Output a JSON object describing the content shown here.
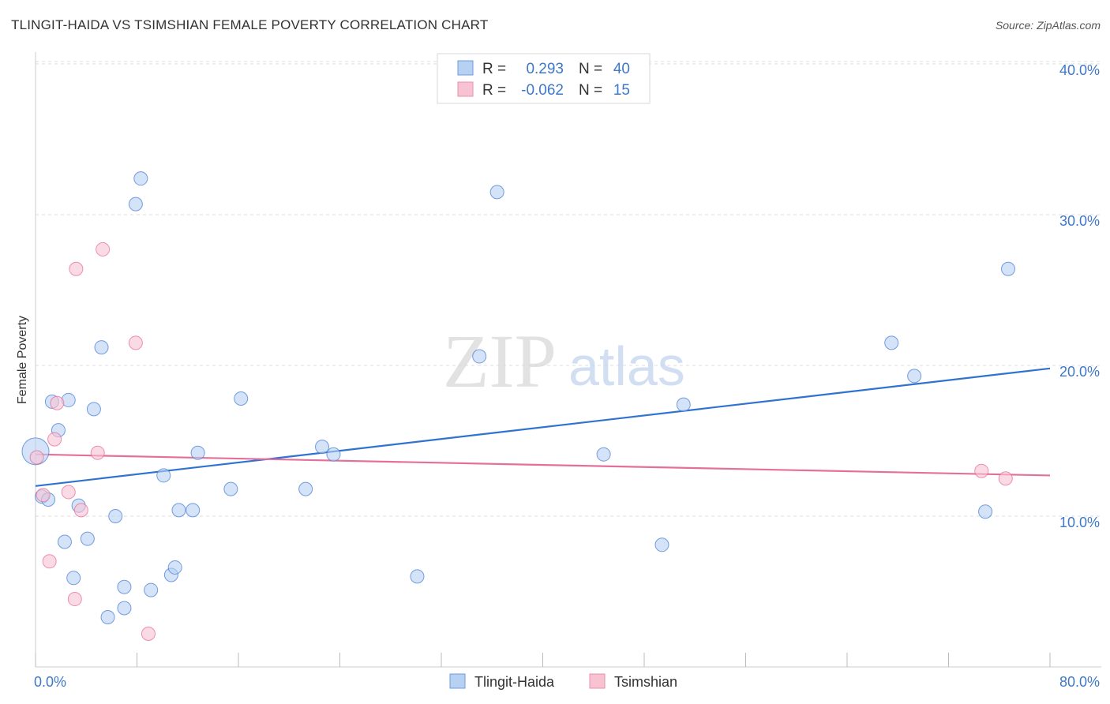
{
  "title": "TLINGIT-HAIDA VS TSIMSHIAN FEMALE POVERTY CORRELATION CHART",
  "source": "Source: ZipAtlas.com",
  "watermark": {
    "zip": "ZIP",
    "atlas": "atlas"
  },
  "colors": {
    "blue": "#4a7fd4",
    "blue_fill": "#b7d1f3",
    "blue_line": "#2f72d0",
    "pink": "#e56e97",
    "pink_fill": "#f7c3d3",
    "pink_line": "#e4709a",
    "axis_label": "#3d78c9",
    "grid": "#dddddd"
  },
  "legend_top": [
    {
      "r_label": "R =",
      "r_value": "0.293",
      "n_label": "N =",
      "n_value": "40"
    },
    {
      "r_label": "R =",
      "r_value": "-0.062",
      "n_label": "N =",
      "n_value": "15"
    }
  ],
  "chart_data": {
    "type": "scatter",
    "title": "TLINGIT-HAIDA VS TSIMSHIAN FEMALE POVERTY CORRELATION CHART",
    "xlabel": "",
    "ylabel": "Female Poverty",
    "xlim": [
      0,
      80
    ],
    "ylim": [
      0,
      42
    ],
    "x_tick_labels": [
      "0.0%",
      "80.0%"
    ],
    "y_ticks": [
      10,
      20,
      30,
      40
    ],
    "y_tick_labels": [
      "10.0%",
      "20.0%",
      "30.0%",
      "40.0%"
    ],
    "grid": true,
    "legend_position": "bottom-center",
    "series": [
      {
        "name": "Tlingit-Haida",
        "color": "blue",
        "trend": {
          "x": [
            0,
            80
          ],
          "y": [
            12.0,
            19.8
          ]
        },
        "points": [
          {
            "x": 0.0,
            "y": 14.3,
            "big": true
          },
          {
            "x": 0.5,
            "y": 11.3
          },
          {
            "x": 1.0,
            "y": 11.1
          },
          {
            "x": 1.3,
            "y": 17.6
          },
          {
            "x": 1.8,
            "y": 15.7
          },
          {
            "x": 2.3,
            "y": 8.3
          },
          {
            "x": 2.6,
            "y": 17.7
          },
          {
            "x": 3.0,
            "y": 5.9
          },
          {
            "x": 3.4,
            "y": 10.7
          },
          {
            "x": 4.1,
            "y": 8.5
          },
          {
            "x": 4.6,
            "y": 17.1
          },
          {
            "x": 5.2,
            "y": 21.2
          },
          {
            "x": 5.7,
            "y": 3.3
          },
          {
            "x": 6.3,
            "y": 10.0
          },
          {
            "x": 7.0,
            "y": 5.3
          },
          {
            "x": 7.0,
            "y": 3.9
          },
          {
            "x": 7.9,
            "y": 30.7
          },
          {
            "x": 8.3,
            "y": 32.4
          },
          {
            "x": 9.1,
            "y": 5.1
          },
          {
            "x": 10.1,
            "y": 12.7
          },
          {
            "x": 10.7,
            "y": 6.1
          },
          {
            "x": 11.0,
            "y": 6.6
          },
          {
            "x": 11.3,
            "y": 10.4
          },
          {
            "x": 12.4,
            "y": 10.4
          },
          {
            "x": 12.8,
            "y": 14.2
          },
          {
            "x": 15.4,
            "y": 11.8
          },
          {
            "x": 16.2,
            "y": 17.8
          },
          {
            "x": 21.3,
            "y": 11.8
          },
          {
            "x": 22.6,
            "y": 14.6
          },
          {
            "x": 23.5,
            "y": 14.1
          },
          {
            "x": 30.1,
            "y": 6.0
          },
          {
            "x": 35.0,
            "y": 20.6
          },
          {
            "x": 36.4,
            "y": 31.5
          },
          {
            "x": 44.8,
            "y": 14.1
          },
          {
            "x": 49.4,
            "y": 8.1
          },
          {
            "x": 51.1,
            "y": 17.4
          },
          {
            "x": 67.5,
            "y": 21.5
          },
          {
            "x": 69.3,
            "y": 19.3
          },
          {
            "x": 74.9,
            "y": 10.3
          },
          {
            "x": 76.7,
            "y": 26.4
          }
        ]
      },
      {
        "name": "Tsimshian",
        "color": "pink",
        "trend": {
          "x": [
            0,
            80
          ],
          "y": [
            14.1,
            12.7
          ]
        },
        "points": [
          {
            "x": 0.1,
            "y": 13.9
          },
          {
            "x": 0.6,
            "y": 11.4
          },
          {
            "x": 1.1,
            "y": 7.0
          },
          {
            "x": 1.5,
            "y": 15.1
          },
          {
            "x": 1.7,
            "y": 17.5
          },
          {
            "x": 2.6,
            "y": 11.6
          },
          {
            "x": 3.1,
            "y": 4.5
          },
          {
            "x": 3.2,
            "y": 26.4
          },
          {
            "x": 3.6,
            "y": 10.4
          },
          {
            "x": 4.9,
            "y": 14.2
          },
          {
            "x": 5.3,
            "y": 27.7
          },
          {
            "x": 7.9,
            "y": 21.5
          },
          {
            "x": 8.9,
            "y": 2.2
          },
          {
            "x": 74.6,
            "y": 13.0
          },
          {
            "x": 76.5,
            "y": 12.5
          }
        ]
      }
    ]
  }
}
